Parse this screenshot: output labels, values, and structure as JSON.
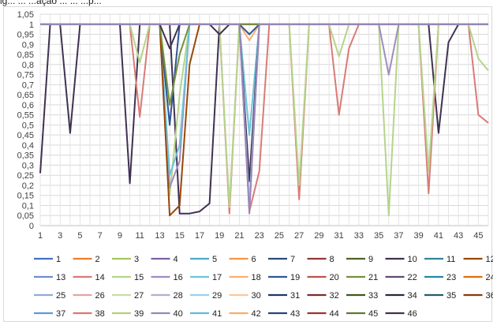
{
  "header": {
    "caption_fragment": "ig... ... ...ação ... ... ...p..."
  },
  "chart_data": {
    "type": "line",
    "title": "",
    "xlabel": "",
    "ylabel": "",
    "ylim": [
      0,
      1.05
    ],
    "y_ticks": [
      "0",
      "0,05",
      "0,1",
      "0,15",
      "0,2",
      "0,25",
      "0,3",
      "0,35",
      "0,4",
      "0,45",
      "0,5",
      "0,55",
      "0,6",
      "0,65",
      "0,7",
      "0,75",
      "0,8",
      "0,85",
      "0,9",
      "0,95",
      "1",
      "1,05"
    ],
    "x": [
      1,
      2,
      3,
      4,
      5,
      6,
      7,
      8,
      9,
      10,
      11,
      12,
      13,
      14,
      15,
      16,
      17,
      18,
      19,
      20,
      21,
      22,
      23,
      24,
      25,
      26,
      27,
      28,
      29,
      30,
      31,
      32,
      33,
      34,
      35,
      36,
      37,
      38,
      39,
      40,
      41,
      42,
      43,
      44,
      45,
      46
    ],
    "x_tick_labels": [
      "1",
      "3",
      "5",
      "7",
      "9",
      "11",
      "13",
      "15",
      "17",
      "19",
      "21",
      "23",
      "25",
      "27",
      "29",
      "31",
      "33",
      "35",
      "37",
      "39",
      "41",
      "43",
      "45"
    ],
    "grid": true,
    "legend_position": "bottom",
    "series": [
      {
        "name": "1",
        "color": "#4472c4"
      },
      {
        "name": "2",
        "color": "#ed7d31"
      },
      {
        "name": "3",
        "color": "#a5c85a"
      },
      {
        "name": "4",
        "color": "#7e62a3"
      },
      {
        "name": "5",
        "color": "#4bacc6"
      },
      {
        "name": "6",
        "color": "#f79646"
      },
      {
        "name": "7",
        "color": "#2c4d75"
      },
      {
        "name": "8",
        "color": "#953735"
      },
      {
        "name": "9",
        "color": "#4f6228"
      },
      {
        "name": "10",
        "color": "#3f3151"
      },
      {
        "name": "11",
        "color": "#31859c"
      },
      {
        "name": "12",
        "color": "#984807"
      },
      {
        "name": "13",
        "color": "#6f8fd0"
      },
      {
        "name": "14",
        "color": "#da7a76"
      },
      {
        "name": "15",
        "color": "#b5d48a"
      },
      {
        "name": "16",
        "color": "#a08cc0"
      },
      {
        "name": "17",
        "color": "#6cc3db"
      },
      {
        "name": "18",
        "color": "#f9b074"
      },
      {
        "name": "19",
        "color": "#2f5597"
      },
      {
        "name": "20",
        "color": "#c0504d"
      },
      {
        "name": "21",
        "color": "#76923c"
      },
      {
        "name": "22",
        "color": "#5f497a"
      },
      {
        "name": "23",
        "color": "#208ba3"
      },
      {
        "name": "24",
        "color": "#e46c0a"
      },
      {
        "name": "25",
        "color": "#8eaadb"
      },
      {
        "name": "26",
        "color": "#e6a3a1"
      },
      {
        "name": "27",
        "color": "#c4dea6"
      },
      {
        "name": "28",
        "color": "#b9abd2"
      },
      {
        "name": "29",
        "color": "#93d4e6"
      },
      {
        "name": "30",
        "color": "#fac69c"
      },
      {
        "name": "31",
        "color": "#1f3864"
      },
      {
        "name": "32",
        "color": "#7b2c2a"
      },
      {
        "name": "33",
        "color": "#3c5a1e"
      },
      {
        "name": "34",
        "color": "#2e2440"
      },
      {
        "name": "35",
        "color": "#215d6c"
      },
      {
        "name": "36",
        "color": "#8a3b04"
      },
      {
        "name": "37",
        "color": "#5b9bd5"
      },
      {
        "name": "38",
        "color": "#e07571"
      },
      {
        "name": "39",
        "color": "#b3d179"
      },
      {
        "name": "40",
        "color": "#9b85bb"
      },
      {
        "name": "41",
        "color": "#5fbcd3"
      },
      {
        "name": "42",
        "color": "#f6ae6e"
      },
      {
        "name": "43",
        "color": "#264478"
      },
      {
        "name": "44",
        "color": "#9e3330"
      },
      {
        "name": "45",
        "color": "#5e7a30"
      },
      {
        "name": "46",
        "color": "#403152"
      }
    ],
    "curves": [
      {
        "series": "10",
        "values": [
          0.26,
          1,
          1,
          0.46,
          1,
          1,
          1,
          1,
          1,
          0.21,
          1,
          1,
          1,
          1,
          0.06,
          0.06,
          0.07,
          0.11,
          1,
          1,
          1,
          1,
          1,
          1,
          1,
          1,
          1,
          1,
          1,
          1,
          1,
          1,
          1,
          1,
          1,
          1,
          1,
          1,
          1,
          1,
          0.46,
          0.91,
          1,
          1,
          1,
          1
        ]
      },
      {
        "series": "14",
        "values": [
          1,
          1,
          1,
          1,
          1,
          1,
          1,
          1,
          1,
          1,
          0.54,
          1,
          1,
          1,
          1,
          1,
          1,
          1,
          1,
          0.06,
          1,
          0.07,
          0.27,
          1,
          1,
          1,
          0.13,
          1,
          1,
          1,
          0.55,
          0.88,
          1,
          1,
          1,
          1,
          1,
          1,
          1,
          0.16,
          1,
          1,
          1,
          1,
          0.55,
          0.51
        ]
      },
      {
        "series": "15",
        "values": [
          1,
          1,
          1,
          1,
          1,
          1,
          1,
          1,
          1,
          1,
          0.81,
          1,
          1,
          0.15,
          0.65,
          1,
          1,
          1,
          1,
          0.09,
          1,
          0.1,
          1,
          1,
          1,
          1,
          0.2,
          1,
          1,
          1,
          0.84,
          1,
          1,
          1,
          1,
          0.05,
          1,
          1,
          1,
          0.27,
          1,
          1,
          1,
          1,
          0.83,
          0.77
        ]
      },
      {
        "series": "16",
        "values": [
          1,
          1,
          1,
          1,
          1,
          1,
          1,
          1,
          1,
          1,
          1,
          1,
          1,
          0.19,
          0.32,
          1,
          1,
          1,
          1,
          1,
          1,
          1,
          1,
          1,
          1,
          1,
          1,
          1,
          1,
          1,
          1,
          1,
          1,
          1,
          1,
          0.75,
          1,
          1,
          1,
          1,
          1,
          1,
          1,
          1,
          1,
          1
        ]
      },
      {
        "series": "17",
        "values": [
          1,
          1,
          1,
          1,
          1,
          1,
          1,
          1,
          1,
          1,
          1,
          1,
          1,
          0.25,
          0.4,
          1,
          1,
          1,
          1,
          1,
          1,
          0.45,
          1,
          1,
          1,
          1,
          1,
          1,
          1,
          1,
          1,
          1,
          1,
          1,
          1,
          1,
          1,
          1,
          1,
          1,
          1,
          1,
          1,
          1,
          1,
          1
        ]
      },
      {
        "series": "18",
        "values": [
          1,
          1,
          1,
          1,
          1,
          1,
          1,
          1,
          1,
          1,
          1,
          1,
          1,
          1,
          1,
          1,
          1,
          1,
          1,
          1,
          1,
          0.92,
          1,
          1,
          1,
          1,
          1,
          1,
          1,
          1,
          1,
          1,
          1,
          1,
          1,
          1,
          1,
          1,
          1,
          1,
          1,
          1,
          1,
          1,
          1,
          1
        ]
      },
      {
        "series": "19",
        "values": [
          1,
          1,
          1,
          1,
          1,
          1,
          1,
          1,
          1,
          1,
          1,
          1,
          1,
          0.5,
          1,
          1,
          1,
          1,
          1,
          1,
          1,
          0.95,
          1,
          1,
          1,
          1,
          1,
          1,
          1,
          1,
          1,
          1,
          1,
          1,
          1,
          1,
          1,
          1,
          1,
          1,
          1,
          1,
          1,
          1,
          1,
          1
        ]
      },
      {
        "series": "12",
        "values": [
          1,
          1,
          1,
          1,
          1,
          1,
          1,
          1,
          1,
          1,
          1,
          1,
          1,
          0.05,
          0.1,
          0.8,
          1,
          1,
          1,
          1,
          1,
          1,
          1,
          1,
          1,
          1,
          1,
          1,
          1,
          1,
          1,
          1,
          1,
          1,
          1,
          1,
          1,
          1,
          1,
          1,
          1,
          1,
          1,
          1,
          1,
          1
        ]
      },
      {
        "series": "21",
        "values": [
          1,
          1,
          1,
          1,
          1,
          1,
          1,
          1,
          1,
          1,
          1,
          1,
          1,
          0.6,
          0.85,
          1,
          1,
          1,
          1,
          1,
          1,
          1,
          1,
          1,
          1,
          1,
          1,
          1,
          1,
          1,
          1,
          1,
          1,
          1,
          1,
          1,
          1,
          1,
          1,
          1,
          1,
          1,
          1,
          1,
          1,
          1
        ]
      },
      {
        "series": "10",
        "values": [
          1,
          1,
          1,
          1,
          1,
          1,
          1,
          1,
          1,
          1,
          1,
          1,
          1,
          0.88,
          1,
          1,
          1,
          1,
          0.95,
          1,
          1,
          0.22,
          1,
          1,
          1,
          1,
          1,
          1,
          1,
          1,
          1,
          1,
          1,
          1,
          1,
          1,
          1,
          1,
          1,
          1,
          1,
          1,
          1,
          1,
          1,
          1
        ]
      },
      {
        "series": "29",
        "values": [
          1,
          1,
          1,
          1,
          1,
          1,
          1,
          1,
          1,
          1,
          1,
          1,
          1,
          1,
          1,
          1,
          1,
          1,
          1,
          1,
          1,
          0.1,
          1,
          1,
          1,
          1,
          1,
          1,
          1,
          1,
          1,
          1,
          1,
          1,
          1,
          1,
          1,
          1,
          1,
          1,
          1,
          1,
          1,
          1,
          1,
          1
        ]
      },
      {
        "series": "40",
        "values": [
          1,
          1,
          1,
          1,
          1,
          1,
          1,
          1,
          1,
          1,
          1,
          1,
          1,
          1,
          1,
          1,
          1,
          1,
          1,
          1,
          1,
          0.06,
          1,
          1,
          1,
          1,
          1,
          1,
          1,
          1,
          1,
          1,
          1,
          1,
          1,
          1,
          1,
          1,
          1,
          1,
          1,
          1,
          1,
          1,
          1,
          1
        ]
      }
    ]
  }
}
